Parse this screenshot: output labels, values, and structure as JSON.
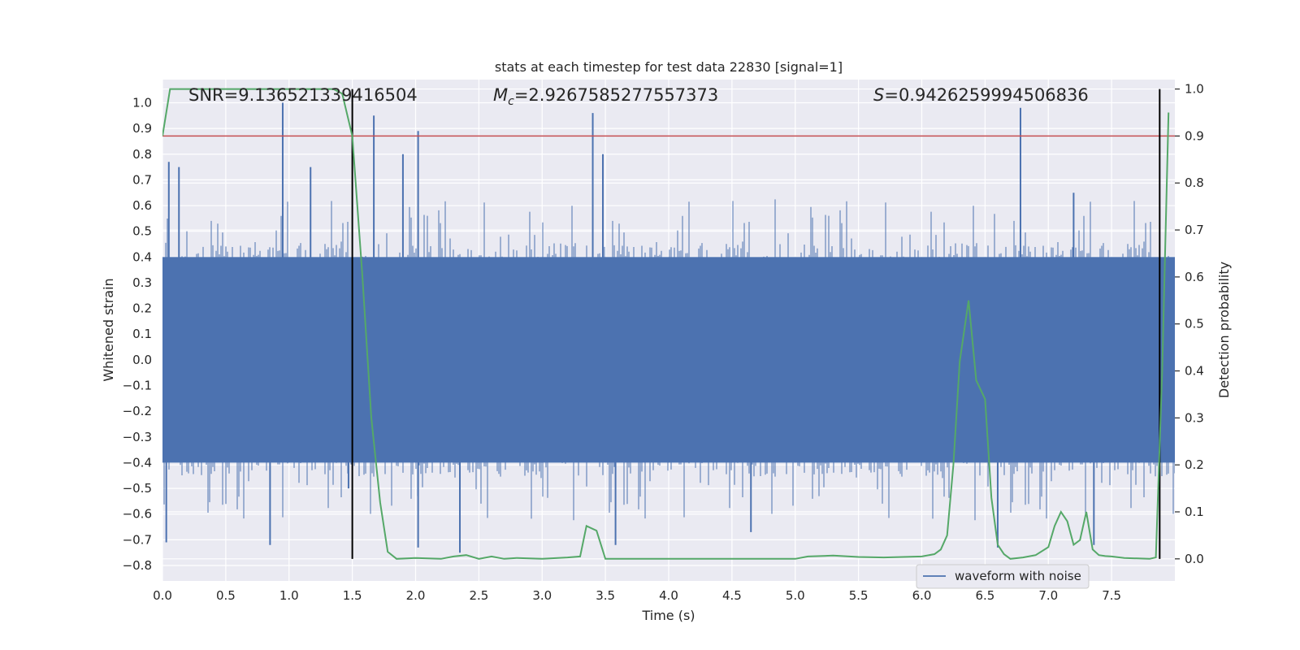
{
  "chart_data": {
    "type": "line",
    "title": "stats at each timestep for test data 22830 [signal=1]",
    "xlabel": "Time (s)",
    "ylabel_left": "Whitened strain",
    "ylabel_right": "Detection probability",
    "xlim": [
      0.0,
      8.0
    ],
    "ylim_left": [
      -0.86,
      1.09
    ],
    "ylim_right": [
      -0.047,
      1.02
    ],
    "x_ticks": [
      "0.0",
      "0.5",
      "1.0",
      "1.5",
      "2.0",
      "2.5",
      "3.0",
      "3.5",
      "4.0",
      "4.5",
      "5.0",
      "5.5",
      "6.0",
      "6.5",
      "7.0",
      "7.5"
    ],
    "y_ticks_left": [
      "−0.8",
      "−0.7",
      "−0.6",
      "−0.5",
      "−0.4",
      "−0.3",
      "−0.2",
      "−0.1",
      "0.0",
      "0.1",
      "0.2",
      "0.3",
      "0.4",
      "0.5",
      "0.6",
      "0.7",
      "0.8",
      "0.9",
      "1.0"
    ],
    "y_ticks_right": [
      "0.0",
      "0.1",
      "0.2",
      "0.3",
      "0.4",
      "0.5",
      "0.6",
      "0.7",
      "0.8",
      "0.9",
      "1.0"
    ],
    "grid": true,
    "legend": {
      "placement": "lower-right",
      "entries": [
        "waveform with noise"
      ]
    },
    "annotations": {
      "snr": "SNR=9.136521339416504",
      "mc_symbol": "M",
      "mc_sub": "c",
      "mc_value": "=2.9267585277557373",
      "s_symbol": "S",
      "s_value": "=0.9426259994506836"
    },
    "threshold": {
      "y": 0.9,
      "axis": "right"
    },
    "vertical_markers": [
      1.5,
      7.88
    ],
    "waveform": {
      "name": "waveform with noise",
      "envelope_upper": 0.4,
      "envelope_lower": -0.4,
      "spikes_up": [
        [
          0.05,
          0.77
        ],
        [
          0.13,
          0.75
        ],
        [
          0.95,
          1.0
        ],
        [
          1.17,
          0.75
        ],
        [
          1.67,
          0.95
        ],
        [
          1.9,
          0.8
        ],
        [
          2.02,
          0.89
        ],
        [
          3.4,
          0.96
        ],
        [
          3.48,
          0.8
        ],
        [
          6.78,
          0.98
        ],
        [
          7.2,
          0.65
        ]
      ],
      "spikes_down": [
        [
          0.03,
          -0.71
        ],
        [
          0.85,
          -0.72
        ],
        [
          1.47,
          -0.5
        ],
        [
          2.02,
          -0.73
        ],
        [
          2.35,
          -0.75
        ],
        [
          3.58,
          -0.72
        ],
        [
          4.65,
          -0.67
        ],
        [
          6.6,
          -0.73
        ],
        [
          7.36,
          -0.72
        ]
      ]
    },
    "detection_probability": {
      "x": [
        0.0,
        0.06,
        0.15,
        1.2,
        1.35,
        1.42,
        1.5,
        1.58,
        1.65,
        1.72,
        1.78,
        1.85,
        2.0,
        2.2,
        2.3,
        2.4,
        2.5,
        2.6,
        2.7,
        2.8,
        3.0,
        3.2,
        3.3,
        3.35,
        3.43,
        3.5,
        3.6,
        3.8,
        4.0,
        4.5,
        5.0,
        5.1,
        5.3,
        5.5,
        5.7,
        6.0,
        6.1,
        6.15,
        6.2,
        6.25,
        6.3,
        6.37,
        6.43,
        6.5,
        6.55,
        6.6,
        6.65,
        6.7,
        6.8,
        6.9,
        7.0,
        7.05,
        7.1,
        7.15,
        7.2,
        7.25,
        7.3,
        7.35,
        7.4,
        7.45,
        7.5,
        7.6,
        7.8,
        7.85,
        7.9,
        7.95
      ],
      "y": [
        0.9,
        1.0,
        1.0,
        1.0,
        1.0,
        0.99,
        0.9,
        0.6,
        0.3,
        0.12,
        0.015,
        0.0,
        0.002,
        0.0,
        0.005,
        0.008,
        0.0,
        0.005,
        0.0,
        0.002,
        0.0,
        0.003,
        0.005,
        0.07,
        0.06,
        0.0,
        0.0,
        0.0,
        0.0,
        0.0,
        0.0,
        0.005,
        0.007,
        0.004,
        0.003,
        0.005,
        0.01,
        0.02,
        0.05,
        0.2,
        0.42,
        0.55,
        0.38,
        0.34,
        0.13,
        0.03,
        0.01,
        0.0,
        0.003,
        0.008,
        0.025,
        0.07,
        0.1,
        0.08,
        0.03,
        0.04,
        0.1,
        0.02,
        0.008,
        0.006,
        0.005,
        0.002,
        0.0,
        0.003,
        0.4,
        0.95
      ]
    }
  },
  "colors": {
    "plot_background": "#eaeaf2",
    "grid": "#ffffff",
    "waveform": "#4c72b0",
    "probability": "#55a868",
    "threshold": "#c44e52",
    "markers": "#000000"
  }
}
